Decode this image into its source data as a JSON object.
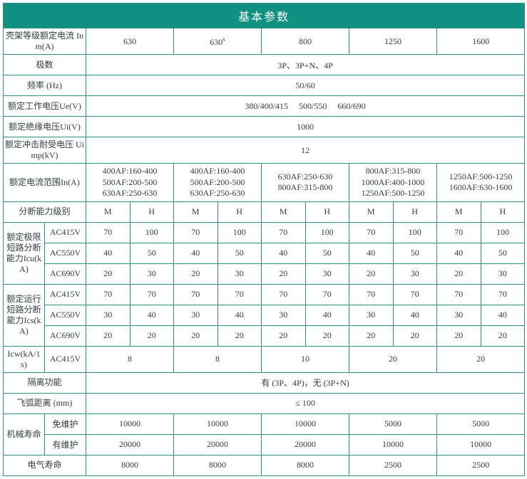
{
  "title": "基本参数",
  "rows": {
    "inm_label": "壳架等级额定电流 Inm(A)",
    "inm": [
      "630",
      "630",
      "800",
      "1250",
      "1600"
    ],
    "inm_sup": "s",
    "poles_label": "极数",
    "poles": "3P、3P+N、4P",
    "freq_label": "频率 (Hz)",
    "freq": "50/60",
    "ue_label": "额定工作电压Ue(V)",
    "ue": "380/400/415  500/550  660/690",
    "ui_label": "额定绝缘电压Ui(V)",
    "ui": "1000",
    "uimp_label": "额定冲击耐受电压 Uimp(kV)",
    "uimp": "12",
    "in_label": "额定电流范围In(A)",
    "in": [
      "400AF:160-400\n500AF:200-500\n630AF:250-630",
      "400AF:160-400\n500AF:200-500\n630AF:250-630",
      "630AF:250-630\n800AF:315-800",
      "800AF:315-800\n1000AF:400-1000\n1250AF:500-1250",
      "1250AF:500-1250\n1600AF:630-1600"
    ],
    "break_level_label": "分断能力级别",
    "mh": [
      "M",
      "H",
      "M",
      "H",
      "M",
      "H",
      "M",
      "H",
      "M",
      "H"
    ],
    "icu_label": "额定极限短路分断能力Icu(kA)",
    "ics_label": "额定运行短路分断能力Ics(kA)",
    "v415": "AC415V",
    "v550": "AC550V",
    "v690": "AC690V",
    "icu": {
      "415": [
        "70",
        "100",
        "70",
        "100",
        "70",
        "100",
        "70",
        "100",
        "70",
        "100"
      ],
      "550": [
        "40",
        "50",
        "40",
        "50",
        "40",
        "50",
        "40",
        "50",
        "40",
        "50"
      ],
      "690": [
        "20",
        "30",
        "20",
        "30",
        "20",
        "30",
        "20",
        "30",
        "20",
        "30"
      ]
    },
    "ics": {
      "415": [
        "70",
        "70",
        "70",
        "70",
        "70",
        "70",
        "70",
        "70",
        "70",
        "70"
      ],
      "550": [
        "30",
        "40",
        "30",
        "40",
        "30",
        "40",
        "30",
        "40",
        "30",
        "40"
      ],
      "690": [
        "20",
        "20",
        "20",
        "20",
        "20",
        "20",
        "20",
        "20",
        "20",
        "20"
      ]
    },
    "icw_label": "Icw(kA/1s)",
    "icw_v": "AC415V",
    "icw": [
      "8",
      "8",
      "10",
      "20",
      "20"
    ],
    "isolate_label": "隔离功能",
    "isolate": "有 (3P、4P)，无 (3P+N)",
    "arc_label": "飞弧距离 (mm)",
    "arc": "≤ 100",
    "mech_label": "机械寿命",
    "mech_nom_label": "免维护",
    "mech_m_label": "有维护",
    "mech_nom": [
      "10000",
      "10000",
      "10000",
      "5000",
      "5000"
    ],
    "mech_m": [
      "20000",
      "20000",
      "20000",
      "10000",
      "10000"
    ],
    "elec_label": "电气寿命",
    "elec": [
      "8000",
      "8000",
      "8000",
      "2500",
      "2500"
    ]
  }
}
